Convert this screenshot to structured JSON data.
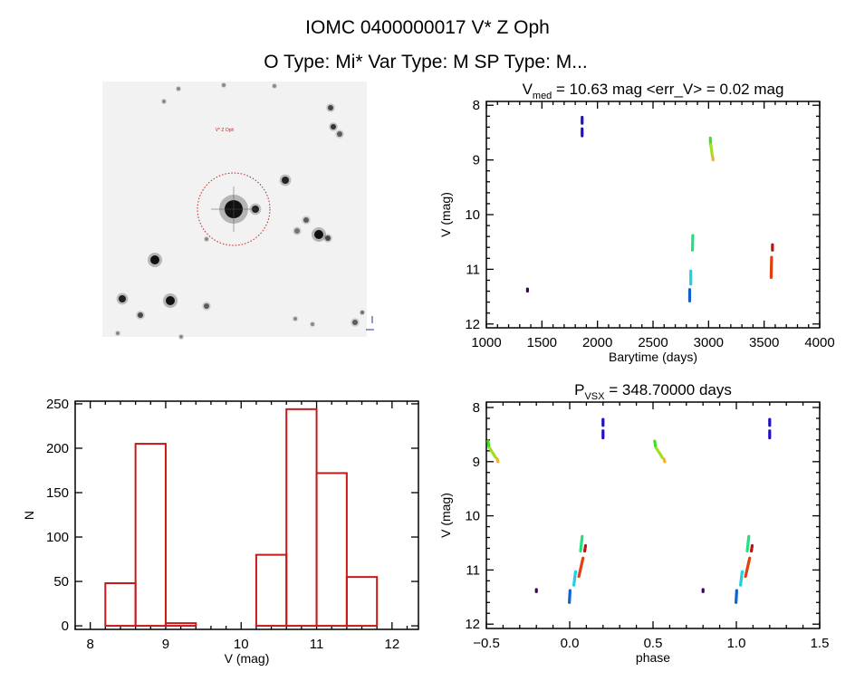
{
  "header": {
    "title": "IOMC 0400000017   V* Z Oph",
    "subtitle": "O Type: Mi*  Var Type: M  SP Type: M..."
  },
  "finder_image": {
    "label": "V* Z Oph",
    "circle_color": "#c02020",
    "background": "#f2f2f2"
  },
  "chart_data": [
    {
      "type": "scatter",
      "title_main": "V",
      "title_sub": "med",
      "title_rest": " = 10.63 mag <err_V> = 0.02 mag",
      "xlabel": "Barytime (days)",
      "ylabel": "V (mag)",
      "xlim": [
        1000,
        4000
      ],
      "ylim": [
        12.07,
        7.93
      ],
      "y_reversed": true,
      "xticks": [
        "1000",
        "1500",
        "2000",
        "2500",
        "3000",
        "3500",
        "4000"
      ],
      "yticks": [
        "8",
        "9",
        "10",
        "11",
        "12"
      ],
      "segments": [
        {
          "x": [
            1370,
            1370
          ],
          "y": [
            11.36,
            11.4
          ],
          "color": "#400060"
        },
        {
          "x": [
            1862,
            1862
          ],
          "y": [
            8.22,
            8.33
          ],
          "color": "#2010c0"
        },
        {
          "x": [
            1862,
            1862
          ],
          "y": [
            8.43,
            8.56
          ],
          "color": "#2010c0"
        },
        {
          "x": [
            2830,
            2830
          ],
          "y": [
            11.37,
            11.58
          ],
          "color": "#1060d0"
        },
        {
          "x": [
            2840,
            2840
          ],
          "y": [
            11.03,
            11.27
          ],
          "color": "#20d0e0"
        },
        {
          "x": [
            2858,
            2855
          ],
          "y": [
            10.38,
            10.65
          ],
          "color": "#20e080"
        },
        {
          "x": [
            3015,
            3018
          ],
          "y": [
            8.6,
            8.72
          ],
          "color": "#40e020"
        },
        {
          "x": [
            3020,
            3035
          ],
          "y": [
            8.72,
            8.95
          ],
          "color": "#a0e020"
        },
        {
          "x": [
            3038,
            3040
          ],
          "y": [
            8.95,
            9.0
          ],
          "color": "#f0b030"
        },
        {
          "x": [
            3575,
            3575
          ],
          "y": [
            10.55,
            10.65
          ],
          "color": "#c01010"
        },
        {
          "x": [
            3567,
            3563
          ],
          "y": [
            10.78,
            11.15
          ],
          "color": "#e04010"
        }
      ]
    },
    {
      "type": "bar",
      "xlabel": "V (mag)",
      "ylabel": "N",
      "xlim": [
        7.8,
        12.35
      ],
      "ylim": [
        -4,
        253
      ],
      "xticks": [
        "8",
        "9",
        "10",
        "11",
        "12"
      ],
      "yticks": [
        "0",
        "50",
        "100",
        "150",
        "200",
        "250"
      ],
      "bar_color": "#c81818",
      "bin_edges": [
        8.2,
        8.6,
        9.0,
        9.4,
        9.8,
        10.2,
        10.6,
        11.0,
        11.4,
        11.8
      ],
      "values": [
        48,
        205,
        3,
        0,
        0,
        80,
        244,
        172,
        55
      ]
    },
    {
      "type": "scatter",
      "title_main": "P",
      "title_sub": "VSX",
      "title_rest": " = 348.70000 days",
      "xlabel": "phase",
      "ylabel": "V (mag)",
      "xlim": [
        -0.5,
        1.5
      ],
      "ylim": [
        12.08,
        7.9
      ],
      "y_reversed": true,
      "xticks": [
        "-0.5",
        "0.0",
        "0.5",
        "1.0",
        "1.5"
      ],
      "yticks": [
        "8",
        "9",
        "10",
        "11",
        "12"
      ],
      "phase_repeated": true,
      "segments": [
        {
          "x": [
            0.8,
            0.8
          ],
          "y": [
            11.36,
            11.4
          ],
          "color": "#400060"
        },
        {
          "x": [
            0.2,
            0.2
          ],
          "y": [
            8.22,
            8.33
          ],
          "color": "#2010c0"
        },
        {
          "x": [
            0.2,
            0.2
          ],
          "y": [
            8.43,
            8.56
          ],
          "color": "#2010c0"
        },
        {
          "x": [
            0.002,
            -0.002
          ],
          "y": [
            11.38,
            11.6
          ],
          "color": "#1060d0"
        },
        {
          "x": [
            0.035,
            0.025
          ],
          "y": [
            11.03,
            11.28
          ],
          "color": "#20d0e0"
        },
        {
          "x": [
            0.075,
            0.065
          ],
          "y": [
            10.38,
            10.65
          ],
          "color": "#20e080"
        },
        {
          "x": [
            0.095,
            0.09
          ],
          "y": [
            10.55,
            10.65
          ],
          "color": "#c01010"
        },
        {
          "x": [
            0.08,
            0.055
          ],
          "y": [
            10.78,
            11.12
          ],
          "color": "#e04010"
        },
        {
          "x": [
            0.51,
            0.515
          ],
          "y": [
            8.62,
            8.72
          ],
          "color": "#40e020"
        },
        {
          "x": [
            0.52,
            0.555
          ],
          "y": [
            8.75,
            8.92
          ],
          "color": "#a0e020"
        },
        {
          "x": [
            0.565,
            0.57
          ],
          "y": [
            8.95,
            9.0
          ],
          "color": "#f0b030"
        }
      ]
    }
  ]
}
